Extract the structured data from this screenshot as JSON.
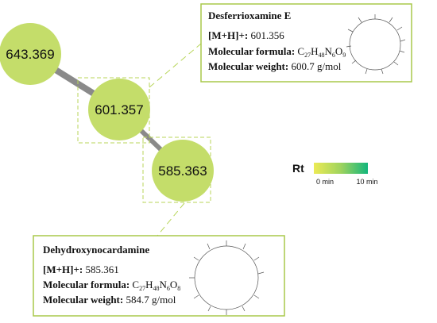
{
  "nodes": [
    {
      "label": "643.369"
    },
    {
      "label": "601.357"
    },
    {
      "label": "585.363"
    }
  ],
  "info_boxes": [
    {
      "title": "Desferrioxamine E",
      "ion_label": "[M+H]+:",
      "ion_value": "601.356",
      "formula_label": "Molecular formula:",
      "formula": [
        "C",
        "27",
        "H",
        "48",
        "N",
        "6",
        "O",
        "9"
      ],
      "weight_label": "Molecular weight:",
      "weight_value": "600.7 g/mol"
    },
    {
      "title": "Dehydroxynocardamine",
      "ion_label": "[M+H]+:",
      "ion_value": "585.361",
      "formula_label": "Molecular formula:",
      "formula": [
        "C",
        "27",
        "H",
        "48",
        "N",
        "6",
        "O",
        "8"
      ],
      "weight_label": "Molecular weight:",
      "weight_value": "584.7 g/mol"
    }
  ],
  "legend": {
    "title": "Rt",
    "min_label": "0 min",
    "max_label": "10 min"
  }
}
